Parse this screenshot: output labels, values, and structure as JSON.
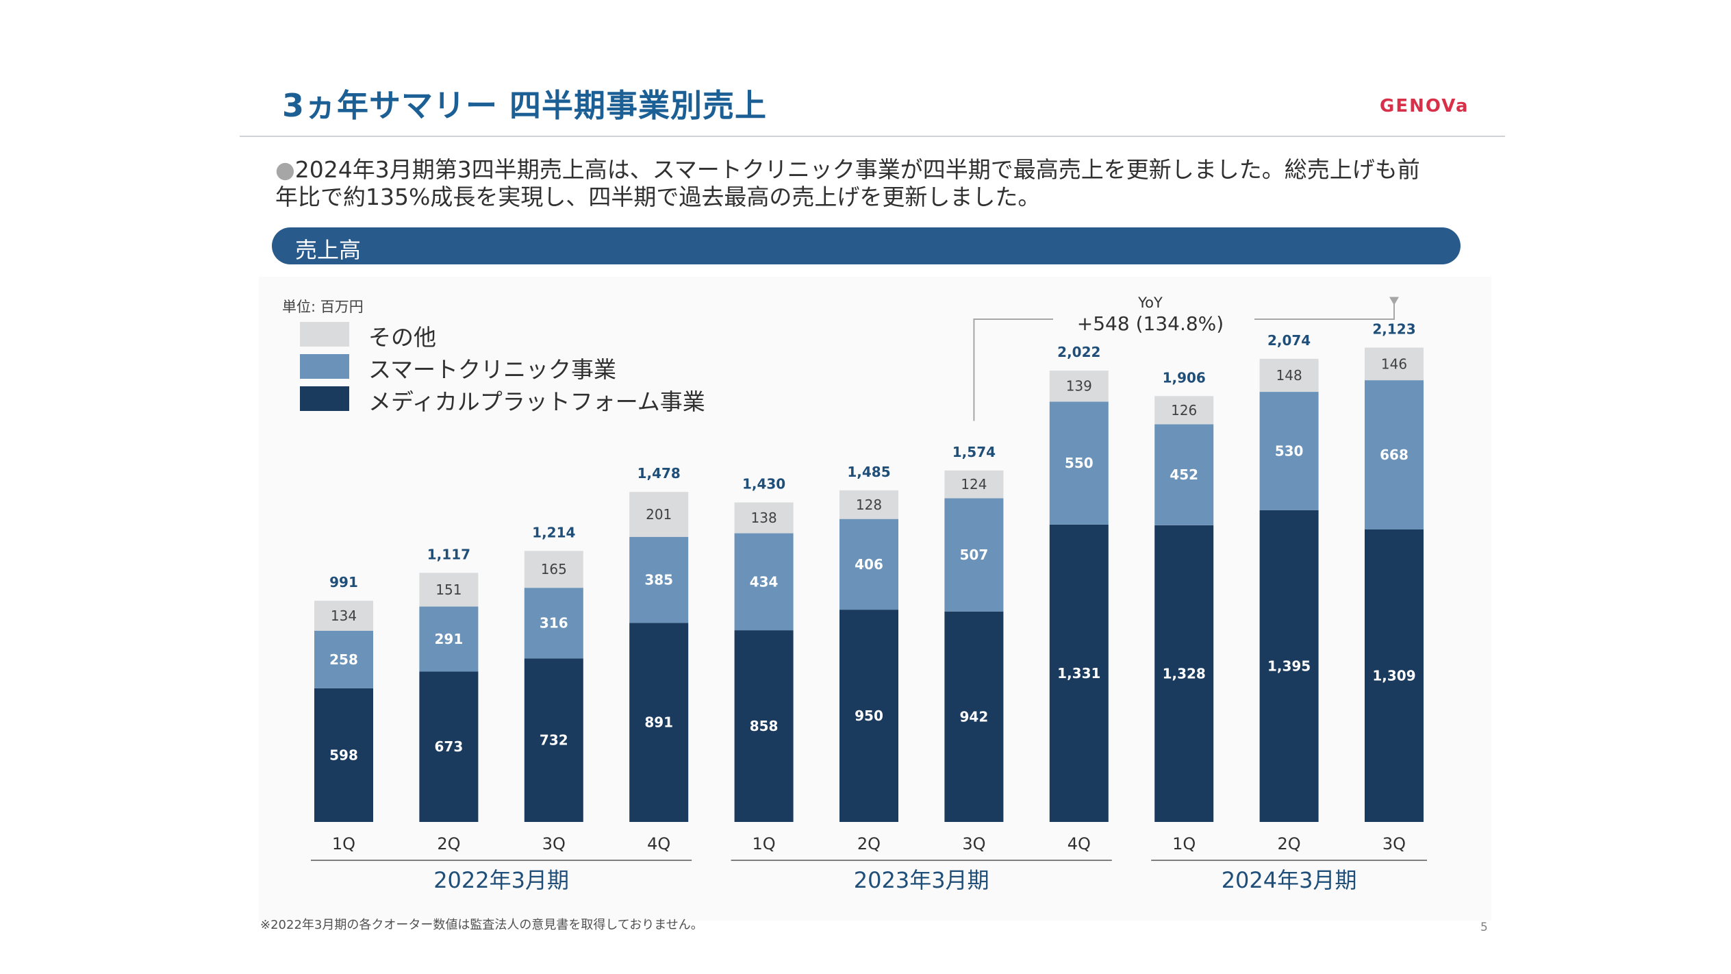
{
  "slide": {
    "title": "3ヵ年サマリー 四半期事業別売上",
    "logo": "GENOVa",
    "summary_bullet": "●",
    "summary_line1": "2024年3月期第3四半期売上高は、スマートクリニック事業が四半期で最高売上を更新しました。総売上げも前",
    "summary_line2": "年比で約135%成長を実現し、四半期で過去最高の売上げを更新しました。",
    "section_label": "売上高",
    "unit_label": "単位: 百万円",
    "yoy_title": "YoY",
    "yoy_value": "+548 (134.8%)",
    "footnote": "※2022年3月期の各クオーター数値は監査法人の意見書を取得しておりません。",
    "page_number": "5"
  },
  "legend": [
    {
      "label": "その他",
      "color": "#d9dbdd"
    },
    {
      "label": "スマートクリニック事業",
      "color": "#6b93b9"
    },
    {
      "label": "メディカルプラットフォーム事業",
      "color": "#1a3a5e"
    }
  ],
  "colors": {
    "total_label": "#1f4e79",
    "axis": "#7f7f7f",
    "title": "#1b5f95",
    "band": "#285a8c"
  },
  "chart_data": {
    "type": "bar",
    "stacked": true,
    "categories": [
      "1Q",
      "2Q",
      "3Q",
      "4Q",
      "1Q",
      "2Q",
      "3Q",
      "4Q",
      "1Q",
      "2Q",
      "3Q"
    ],
    "groups": [
      {
        "label": "2022年3月期",
        "count": 4
      },
      {
        "label": "2023年3月期",
        "count": 4
      },
      {
        "label": "2024年3月期",
        "count": 3
      }
    ],
    "series": [
      {
        "name": "メディカルプラットフォーム事業",
        "values": [
          598,
          673,
          732,
          891,
          858,
          950,
          942,
          1331,
          1328,
          1395,
          1309
        ]
      },
      {
        "name": "スマートクリニック事業",
        "values": [
          258,
          291,
          316,
          385,
          434,
          406,
          507,
          550,
          452,
          530,
          668
        ]
      },
      {
        "name": "その他",
        "values": [
          134,
          151,
          165,
          201,
          138,
          128,
          124,
          139,
          126,
          148,
          146
        ]
      }
    ],
    "value_labels": [
      [
        "598",
        "673",
        "732",
        "891",
        "858",
        "950",
        "942",
        "1,331",
        "1,328",
        "1,395",
        "1,309"
      ],
      [
        "258",
        "291",
        "316",
        "385",
        "434",
        "406",
        "507",
        "550",
        "452",
        "530",
        "668"
      ],
      [
        "134",
        "151",
        "165",
        "201",
        "138",
        "128",
        "124",
        "139",
        "126",
        "148",
        "146"
      ]
    ],
    "totals": [
      991,
      1117,
      1214,
      1478,
      1430,
      1485,
      1574,
      2022,
      1906,
      2074,
      2123
    ],
    "total_labels": [
      "991",
      "1,117",
      "1,214",
      "1,478",
      "1,430",
      "1,485",
      "1,574",
      "2,022",
      "1,906",
      "2,074",
      "2,123"
    ],
    "yoy_annotation": {
      "from_index": 6,
      "to_index": 10,
      "text": "+548 (134.8%)"
    },
    "ylim": [
      0,
      2150
    ],
    "grid": false,
    "legend_position": "top-left"
  }
}
